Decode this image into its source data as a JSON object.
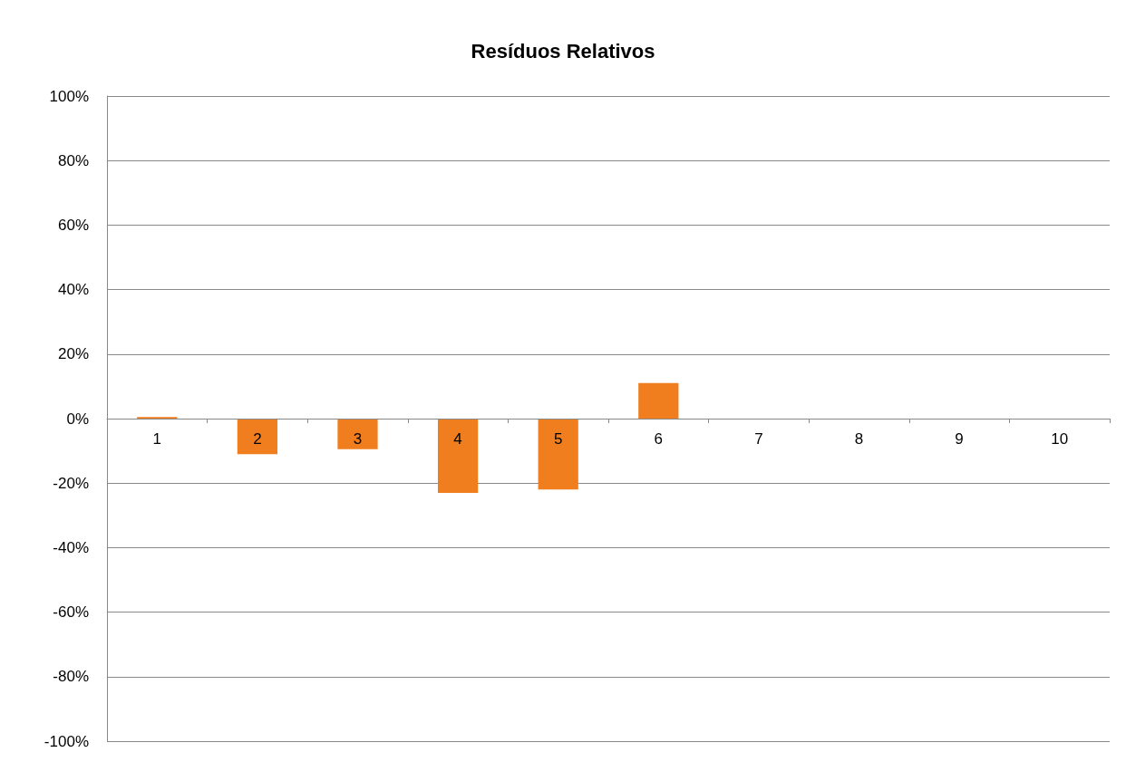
{
  "chart_data": {
    "type": "bar",
    "title": "Resíduos Relativos",
    "categories": [
      "1",
      "2",
      "3",
      "4",
      "5",
      "6",
      "7",
      "8",
      "9",
      "10"
    ],
    "values": [
      0.5,
      -11,
      -9.5,
      -23,
      -22,
      11,
      0,
      0,
      0,
      0
    ],
    "color": "#f07d1e",
    "ylim": [
      -100,
      100
    ],
    "yticks": [
      {
        "value": -100,
        "label": "-100%"
      },
      {
        "value": -80,
        "label": "-80%"
      },
      {
        "value": -60,
        "label": "-60%"
      },
      {
        "value": -40,
        "label": "-40%"
      },
      {
        "value": -20,
        "label": "-20%"
      },
      {
        "value": 0,
        "label": "0%"
      },
      {
        "value": 20,
        "label": "20%"
      },
      {
        "value": 40,
        "label": "40%"
      },
      {
        "value": 60,
        "label": "60%"
      },
      {
        "value": 80,
        "label": "80%"
      },
      {
        "value": 100,
        "label": "100%"
      }
    ],
    "grid": "y"
  }
}
